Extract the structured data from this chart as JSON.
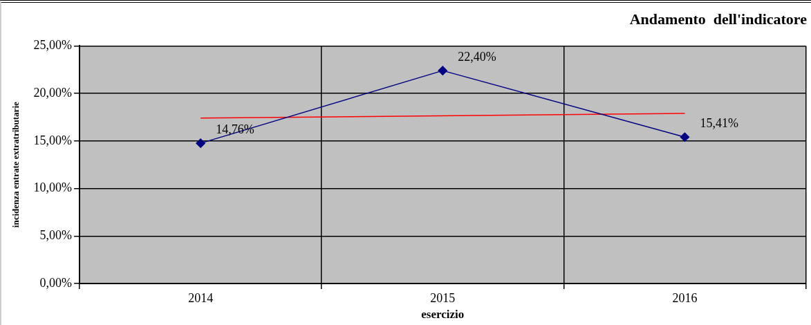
{
  "chart_data": {
    "type": "line",
    "title": "Andamento  dell'indicatore",
    "xlabel": "esercizio",
    "ylabel": "incidenza entrate extratributarie",
    "categories": [
      "2014",
      "2015",
      "2016"
    ],
    "series": [
      {
        "color": "#000080",
        "marker": "diamond",
        "values": [
          14.76,
          22.4,
          15.41
        ],
        "value_labels": [
          "14,76%",
          "22,40%",
          "15,41%"
        ]
      },
      {
        "color": "#ff0000",
        "marker": "none",
        "values": [
          17.4,
          null,
          17.9
        ]
      }
    ],
    "ylim": [
      0,
      25
    ],
    "yticks": [
      {
        "value": 0,
        "label": "0,00%"
      },
      {
        "value": 5,
        "label": "5,00%"
      },
      {
        "value": 10,
        "label": "10,00%"
      },
      {
        "value": 15,
        "label": "15,00%"
      },
      {
        "value": 20,
        "label": "20,00%"
      },
      {
        "value": 25,
        "label": "25,00%"
      }
    ],
    "grid": true
  }
}
